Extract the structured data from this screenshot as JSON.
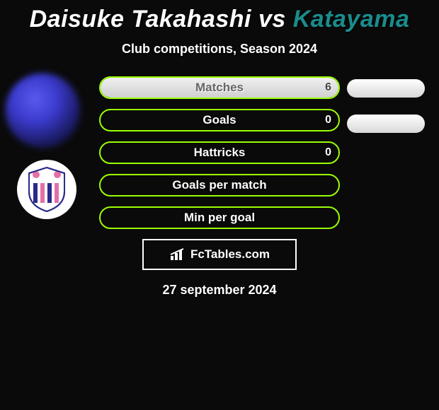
{
  "title": {
    "left": "Daisuke Takahashi",
    "vs": "vs",
    "right": "Katayama"
  },
  "subtitle": "Club competitions, Season 2024",
  "colors": {
    "border": "#9aff00",
    "bg": "#0a0a0a",
    "fill": "linear-gradient(#f0f0f0,#d0d0d0)",
    "right_accent": "#1a8c8c"
  },
  "rows": [
    {
      "label": "Matches",
      "left_value": "6",
      "left_pct": 100,
      "show_left_val": true,
      "right_pill": true
    },
    {
      "label": "Goals",
      "left_value": "0",
      "left_pct": 0,
      "show_left_val": true,
      "right_pill": true
    },
    {
      "label": "Hattricks",
      "left_value": "0",
      "left_pct": 0,
      "show_left_val": true,
      "right_pill": false
    },
    {
      "label": "Goals per match",
      "left_value": "",
      "left_pct": 0,
      "show_left_val": false,
      "right_pill": false
    },
    {
      "label": "Min per goal",
      "left_value": "",
      "left_pct": 0,
      "show_left_val": false,
      "right_pill": false
    }
  ],
  "logo_text": "FcTables.com",
  "date": "27 september 2024"
}
